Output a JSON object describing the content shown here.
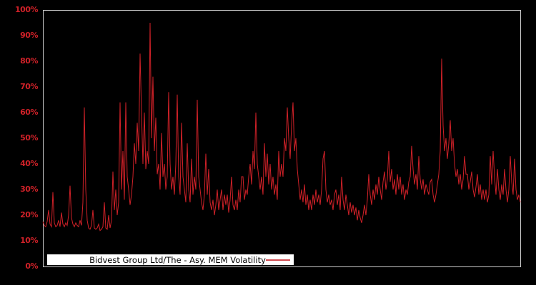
{
  "window": {
    "background_color": "#000000"
  },
  "chart_data": {
    "type": "line",
    "title": "",
    "xlabel": "",
    "ylabel": "",
    "ylim": [
      0,
      100
    ],
    "grid": false,
    "plot": {
      "background_color": "#000000",
      "border_color": "#c9c9c9",
      "tick_label_color": "#d02128"
    },
    "ytick_labels": [
      "0%",
      "10%",
      "20%",
      "30%",
      "40%",
      "50%",
      "60%",
      "70%",
      "80%",
      "90%",
      "100%"
    ],
    "legend": {
      "position": "bottom-inside",
      "background_color": "#ffffff",
      "text_color": "#000000",
      "line_sample_color": "#d0494f"
    },
    "series": [
      {
        "name": "Bidvest Group Ltd/The - Asy. MEM Volatility",
        "color": "#d02128",
        "unit": "%",
        "values": [
          17.5,
          16,
          15.5,
          17.5,
          22,
          16.5,
          15.5,
          29,
          17,
          15.5,
          16,
          18,
          15.5,
          21,
          16.5,
          15.5,
          17,
          16,
          20,
          31.5,
          19,
          16.5,
          15.5,
          17,
          16,
          15.5,
          18,
          16,
          25,
          62,
          30,
          18,
          15,
          14.5,
          16,
          22,
          15,
          14.5,
          15,
          16.5,
          14,
          14.5,
          15.5,
          25,
          15,
          14.5,
          20,
          15,
          18,
          37,
          22,
          30,
          20,
          25,
          64,
          30,
          45,
          26,
          64,
          35,
          30,
          24,
          28,
          35,
          48,
          40,
          56,
          45,
          83,
          60,
          40,
          60,
          38,
          45,
          40,
          95,
          50,
          74,
          45,
          58,
          36,
          40,
          30,
          52,
          35,
          40,
          30,
          35,
          68,
          40,
          30,
          35,
          28,
          40,
          67,
          35,
          28,
          56,
          35,
          30,
          25,
          48,
          30,
          25,
          42,
          28,
          35,
          30,
          65,
          35,
          30,
          25,
          22,
          28,
          44,
          28,
          38,
          25,
          22,
          26,
          20,
          24,
          30,
          22,
          26,
          30,
          22,
          28,
          24,
          28,
          21,
          26,
          35,
          24,
          22,
          26,
          22,
          30,
          25,
          35,
          35,
          26,
          30,
          28,
          35,
          40,
          32,
          45,
          38,
          60,
          40,
          35,
          30,
          35,
          28,
          48,
          35,
          44,
          32,
          40,
          30,
          35,
          28,
          32,
          26,
          45,
          35,
          40,
          35,
          50,
          45,
          62,
          50,
          42,
          55,
          64,
          45,
          50,
          38,
          32,
          26,
          30,
          25,
          32,
          24,
          28,
          22,
          26,
          22,
          28,
          24,
          30,
          25,
          28,
          24,
          30,
          42,
          45,
          30,
          25,
          28,
          24,
          26,
          22,
          28,
          30,
          24,
          28,
          22,
          35,
          26,
          22,
          28,
          24,
          20,
          25,
          21,
          24,
          20,
          23,
          18,
          22,
          19,
          17,
          20,
          24,
          20,
          26,
          36,
          28,
          24,
          30,
          26,
          32,
          28,
          35,
          30,
          26,
          33,
          37,
          30,
          34,
          45,
          33,
          38,
          30,
          34,
          28,
          36,
          30,
          35,
          28,
          32,
          26,
          30,
          28,
          33,
          35,
          47,
          38,
          32,
          36,
          30,
          43,
          34,
          30,
          34,
          28,
          32,
          30,
          28,
          33,
          34,
          28,
          25,
          28,
          32,
          36,
          45,
          81,
          55,
          45,
          50,
          42,
          48,
          57,
          45,
          50,
          40,
          35,
          38,
          32,
          36,
          30,
          34,
          43,
          36,
          36,
          30,
          33,
          37,
          30,
          27,
          31,
          36,
          28,
          32,
          26,
          30,
          26,
          30,
          25,
          28,
          43,
          32,
          45,
          35,
          28,
          38,
          30,
          26,
          32,
          28,
          38,
          30,
          25,
          30,
          43,
          33,
          28,
          42,
          30,
          26,
          28,
          25
        ]
      }
    ]
  }
}
